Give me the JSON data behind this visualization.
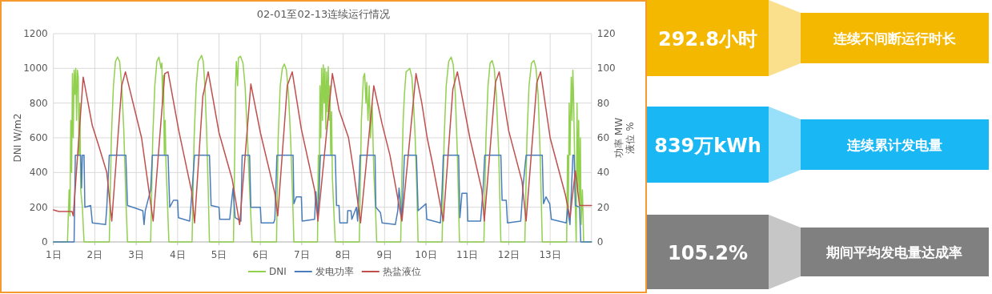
{
  "chart_data": [
    {
      "type": "line",
      "title": "02-01至02-13连续运行情况",
      "ylabel": "DNI W/m2",
      "y2label": "功率 MW\n液位 %",
      "xlim": [
        1,
        14
      ],
      "xticks": [
        {
          "value": 1,
          "label": "1日"
        },
        {
          "value": 2,
          "label": "2日"
        },
        {
          "value": 3,
          "label": "3日"
        },
        {
          "value": 4,
          "label": "4日"
        },
        {
          "value": 5,
          "label": "5日"
        },
        {
          "value": 6,
          "label": "6日"
        },
        {
          "value": 7,
          "label": "7日"
        },
        {
          "value": 8,
          "label": "8日"
        },
        {
          "value": 9,
          "label": "9日"
        },
        {
          "value": 10,
          "label": "10日"
        },
        {
          "value": 11,
          "label": "11日"
        },
        {
          "value": 12,
          "label": "12日"
        },
        {
          "value": 13,
          "label": "13日"
        }
      ],
      "ylim": [
        0,
        1200
      ],
      "yticks": [
        0,
        200,
        400,
        600,
        800,
        1000,
        1200
      ],
      "y2lim": [
        0,
        120
      ],
      "y2ticks": [
        0,
        20,
        40,
        60,
        80,
        100,
        120
      ],
      "grid": true,
      "legend": "bottom",
      "marker": "none",
      "line_style": "solid",
      "series": [
        {
          "name": "DNI",
          "color": "#92d050",
          "x": [
            1.0,
            1.34,
            1.38,
            1.4,
            1.42,
            1.44,
            1.46,
            1.48,
            1.5,
            1.52,
            1.54,
            1.56,
            1.58,
            1.6,
            1.62,
            1.64,
            1.66,
            1.7,
            1.74,
            2.35,
            2.4,
            2.45,
            2.5,
            2.55,
            2.6,
            2.65,
            2.7,
            2.75,
            2.79,
            3.35,
            3.4,
            3.45,
            3.5,
            3.55,
            3.6,
            3.62,
            3.64,
            3.66,
            3.68,
            3.7,
            3.72,
            3.76,
            3.79,
            4.35,
            4.4,
            4.45,
            4.5,
            4.55,
            4.58,
            4.62,
            4.66,
            4.7,
            4.74,
            4.77,
            5.35,
            5.38,
            5.4,
            5.42,
            5.44,
            5.45,
            5.47,
            5.52,
            5.58,
            5.63,
            5.68,
            5.74,
            5.8,
            6.39,
            6.43,
            6.48,
            6.53,
            6.58,
            6.63,
            6.68,
            6.73,
            6.78,
            6.81,
            7.38,
            7.4,
            7.42,
            7.44,
            7.46,
            7.48,
            7.5,
            7.52,
            7.54,
            7.56,
            7.58,
            7.6,
            7.62,
            7.64,
            7.66,
            7.68,
            7.7,
            7.72,
            7.74,
            7.78,
            7.81,
            8.39,
            8.44,
            8.49,
            8.52,
            8.55,
            8.57,
            8.6,
            8.63,
            8.66,
            8.7,
            8.74,
            8.78,
            8.81,
            9.39,
            9.42,
            9.45,
            9.48,
            9.52,
            9.57,
            9.61,
            9.66,
            9.7,
            9.74,
            9.78,
            9.81,
            10.39,
            10.44,
            10.49,
            10.55,
            10.61,
            10.66,
            10.71,
            10.76,
            10.81,
            11.4,
            11.45,
            11.5,
            11.55,
            11.6,
            11.65,
            11.7,
            11.76,
            11.81,
            12.39,
            12.44,
            12.49,
            12.55,
            12.61,
            12.66,
            12.71,
            12.76,
            12.81,
            13.4,
            13.42,
            13.44,
            13.46,
            13.48,
            13.51,
            13.53,
            13.55,
            13.57,
            13.59,
            13.61,
            13.63,
            13.65,
            13.67,
            13.69,
            13.71,
            13.73,
            13.75,
            13.78,
            13.81,
            14.0
          ],
          "values": [
            0,
            0,
            300,
            150,
            700,
            400,
            970,
            600,
            990,
            850,
            1000,
            700,
            990,
            950,
            500,
            800,
            300,
            200,
            0,
            0,
            600,
            900,
            1040,
            1065,
            1040,
            900,
            650,
            250,
            0,
            0,
            600,
            900,
            1040,
            1065,
            1000,
            1030,
            800,
            960,
            500,
            700,
            450,
            200,
            0,
            0,
            600,
            900,
            1040,
            1060,
            1075,
            1040,
            900,
            650,
            300,
            0,
            0,
            500,
            900,
            1040,
            950,
            900,
            1060,
            1070,
            1030,
            900,
            650,
            300,
            0,
            0,
            600,
            900,
            1000,
            1025,
            990,
            850,
            600,
            250,
            0,
            0,
            500,
            250,
            900,
            600,
            1000,
            700,
            1020,
            800,
            1000,
            650,
            980,
            750,
            1010,
            700,
            900,
            500,
            750,
            370,
            150,
            0,
            0,
            700,
            950,
            970,
            800,
            920,
            700,
            900,
            600,
            800,
            400,
            200,
            0,
            0,
            400,
            700,
            850,
            980,
            990,
            1000,
            950,
            800,
            600,
            300,
            0,
            0,
            600,
            900,
            1040,
            1065,
            1020,
            850,
            500,
            0,
            0,
            600,
            900,
            1030,
            1045,
            1000,
            850,
            500,
            0,
            0,
            600,
            900,
            1030,
            1045,
            1000,
            850,
            500,
            0,
            0,
            500,
            200,
            800,
            500,
            950,
            700,
            990,
            800,
            500,
            200,
            0,
            800,
            300,
            700,
            200,
            600,
            100,
            300,
            0,
            0
          ]
        },
        {
          "name": "发电功率",
          "color": "#4a7ebb",
          "axis": "y2",
          "x": [
            1.0,
            1.5,
            1.53,
            1.66,
            1.68,
            1.7,
            1.74,
            1.76,
            1.9,
            1.94,
            2.26,
            2.29,
            2.35,
            2.75,
            2.79,
            3.16,
            3.19,
            3.22,
            3.35,
            3.39,
            3.77,
            3.81,
            3.9,
            4.0,
            4.02,
            4.29,
            4.32,
            4.36,
            4.41,
            4.77,
            4.81,
            5.0,
            5.02,
            5.26,
            5.29,
            5.34,
            5.39,
            5.53,
            5.56,
            5.74,
            5.77,
            6.0,
            6.02,
            6.32,
            6.35,
            6.4,
            6.79,
            6.81,
            6.87,
            6.99,
            7.01,
            7.31,
            7.34,
            7.39,
            7.45,
            7.81,
            7.84,
            7.9,
            7.92,
            8.1,
            8.11,
            8.19,
            8.21,
            8.32,
            8.35,
            8.41,
            8.77,
            8.79,
            8.9,
            8.94,
            9.26,
            9.32,
            9.35,
            9.42,
            9.48,
            9.77,
            9.81,
            10.0,
            10.02,
            10.35,
            10.39,
            10.42,
            10.79,
            10.82,
            10.87,
            10.99,
            11.01,
            11.32,
            11.38,
            11.42,
            11.81,
            11.84,
            11.94,
            11.97,
            12.29,
            12.35,
            12.42,
            12.81,
            12.84,
            12.9,
            12.99,
            13.03,
            13.39,
            13.42,
            13.48,
            13.55,
            13.58,
            13.61,
            13.71,
            13.74,
            14.0
          ],
          "values": [
            0,
            0,
            50,
            50,
            31,
            50,
            50,
            20,
            21,
            11,
            10,
            20,
            50,
            50,
            21,
            18,
            10,
            18,
            30,
            50,
            50,
            20,
            24,
            24,
            14,
            12,
            20,
            33,
            50,
            50,
            21,
            20,
            13,
            13,
            20,
            31,
            14,
            12,
            50,
            50,
            20,
            20,
            11,
            11,
            13,
            50,
            50,
            22,
            26,
            26,
            12,
            13,
            29,
            14,
            50,
            50,
            21,
            21,
            11,
            11,
            18,
            18,
            13,
            20,
            12,
            50,
            50,
            20,
            17,
            11,
            10,
            18,
            31,
            13,
            50,
            50,
            18,
            22,
            13,
            11,
            30,
            50,
            50,
            14,
            28,
            28,
            12,
            12,
            30,
            50,
            50,
            24,
            24,
            11,
            12,
            33,
            50,
            50,
            22,
            26,
            22,
            13,
            11,
            19,
            10,
            50,
            50,
            21,
            20,
            0,
            0
          ]
        },
        {
          "name": "热盐液位",
          "color": "#c0504d",
          "axis": "y2",
          "x": [
            1.0,
            1.13,
            1.45,
            1.48,
            1.72,
            1.94,
            2.1,
            2.29,
            2.41,
            2.65,
            2.74,
            3.13,
            3.41,
            3.69,
            3.77,
            4.03,
            4.34,
            4.41,
            4.61,
            4.74,
            5.0,
            5.32,
            5.5,
            5.77,
            6.0,
            6.35,
            6.42,
            6.65,
            6.77,
            6.99,
            7.31,
            7.39,
            7.74,
            7.9,
            8.13,
            8.26,
            8.42,
            8.74,
            8.94,
            9.13,
            9.42,
            9.76,
            9.9,
            10.03,
            10.16,
            10.42,
            10.65,
            10.76,
            11.06,
            11.35,
            11.41,
            11.68,
            11.77,
            12.0,
            12.32,
            12.42,
            12.68,
            12.77,
            13.0,
            13.37,
            13.48,
            13.61,
            13.71,
            14.0
          ],
          "values": [
            18.5,
            17.5,
            17.5,
            15,
            95,
            67,
            55,
            40,
            12,
            90,
            98,
            60,
            12,
            97,
            98,
            64,
            29,
            11,
            84,
            98,
            63,
            36,
            10,
            91,
            63,
            28,
            15,
            90,
            98,
            65,
            30,
            12,
            97,
            76,
            60,
            40,
            11,
            90,
            68,
            50,
            12,
            97,
            80,
            60,
            45,
            12,
            88,
            98,
            60,
            30,
            12,
            92,
            98,
            64,
            35,
            12,
            92,
            98,
            60,
            27,
            14,
            41,
            21,
            21
          ]
        }
      ]
    },
    {
      "type": "other",
      "annotations": [
        "292.8小时",
        "连续不间断运行时长",
        "839万kWh",
        "连续累计发电量",
        "105.2%",
        "期间平均发电量达成率"
      ],
      "colors": [
        "#f5b800",
        "#1ab7f5",
        "#808080"
      ]
    }
  ]
}
